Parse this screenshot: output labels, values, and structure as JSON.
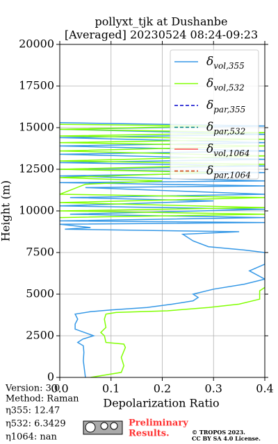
{
  "chart_data": {
    "type": "profile",
    "title": "pollyxt_tjk at Dushanbe",
    "subtitle": "[Averaged] 20230524 08:24-09:23",
    "xlabel": "Depolarization Ratio",
    "ylabel": "Height (m)",
    "xlim": [
      0,
      0.4
    ],
    "ylim": [
      0,
      20000
    ],
    "xticks": [
      {
        "value": 0,
        "label": "0.0"
      },
      0.1,
      0.2,
      0.3,
      0.4
    ],
    "yticks": [
      0,
      2500,
      5000,
      7500,
      10000,
      12500,
      15000,
      17500,
      20000
    ],
    "grid": true,
    "legend": "upper right",
    "series": [
      {
        "name": "δvol,355",
        "color": "#3397e6",
        "dash": false,
        "x": [
          0.05,
          0.048,
          0.046,
          0.047,
          0.046,
          0.035,
          0.045,
          0.066,
          0.03,
          0.03,
          0.035,
          0.03,
          0.06,
          0.1,
          0.17,
          0.22,
          0.26,
          0.27,
          0.26,
          0.3,
          0.36,
          0.4,
          0.37,
          0.4,
          0.4,
          0.36,
          0.29,
          0.26,
          0.24,
          0.35,
          0.01,
          0.06,
          0,
          0.4,
          0,
          0.4,
          0.02,
          0.4,
          0,
          0.3,
          0.02,
          0.4,
          0.05,
          0.4,
          0,
          0.4,
          0,
          0.4,
          0,
          0.4,
          0,
          0.4,
          0,
          0.4,
          0,
          0.4,
          0,
          0.4,
          0,
          0.4,
          0
        ],
        "y": [
          0,
          500,
          1000,
          1500,
          1900,
          2100,
          2300,
          2500,
          2900,
          3200,
          3500,
          3800,
          3950,
          4050,
          4200,
          4400,
          4600,
          4800,
          5000,
          5300,
          5600,
          5900,
          6400,
          6800,
          7500,
          7650,
          7850,
          8200,
          8600,
          8750,
          8900,
          9000,
          9200,
          9300,
          9400,
          9600,
          9800,
          10100,
          10300,
          10600,
          10800,
          11000,
          11400,
          11500,
          11700,
          11800,
          12100,
          12300,
          12500,
          12700,
          12900,
          13100,
          13400,
          13600,
          13900,
          14100,
          14400,
          14600,
          14900,
          15100,
          15300
        ]
      },
      {
        "name": "δvol,532",
        "color": "#80ff00",
        "dash": false,
        "x": [
          0.06,
          0.12,
          0.125,
          0.12,
          0.128,
          0.125,
          0.09,
          0.087,
          0.08,
          0.09,
          0.087,
          0.09,
          0.11,
          0.21,
          0.29,
          0.35,
          0.39,
          0.39,
          0.4,
          null,
          0,
          0.4,
          0,
          0.4,
          0,
          0.4,
          0,
          0.05,
          0.2,
          0,
          0.3,
          0,
          0.4,
          0,
          0.4,
          0,
          0.4,
          0,
          0.4,
          0,
          0.4,
          0,
          0.3,
          0
        ],
        "y": [
          0,
          300,
          700,
          1200,
          1800,
          2000,
          2100,
          2500,
          2700,
          3000,
          3500,
          3800,
          3900,
          4000,
          4200,
          4400,
          4700,
          5200,
          5400,
          null,
          9600,
          9800,
          10000,
          10200,
          10500,
          10800,
          11000,
          11600,
          11800,
          12000,
          12300,
          12500,
          12800,
          13000,
          13300,
          13600,
          13900,
          14100,
          14300,
          14500,
          14700,
          14900,
          15100,
          15200
        ]
      },
      {
        "name": "δpar,355",
        "color": "#0000cc",
        "dash": true,
        "x": [],
        "y": []
      },
      {
        "name": "δpar,532",
        "color": "#008080",
        "dash": true,
        "x": [],
        "y": []
      },
      {
        "name": "δvol,1064",
        "color": "#ff4d4d",
        "dash": false,
        "x": [],
        "y": []
      },
      {
        "name": "δpar,1064",
        "color": "#cc3300",
        "dash": true,
        "x": [],
        "y": []
      }
    ]
  },
  "info": [
    "Version: 3.0",
    "Method: Raman",
    "η355:  12.47",
    "η532: 6.3429",
    "η1064:    nan"
  ],
  "notice": [
    "Preliminary",
    "Results."
  ],
  "license": [
    "© TROPOS 2023.",
    "CC BY SA 4.0 License."
  ]
}
